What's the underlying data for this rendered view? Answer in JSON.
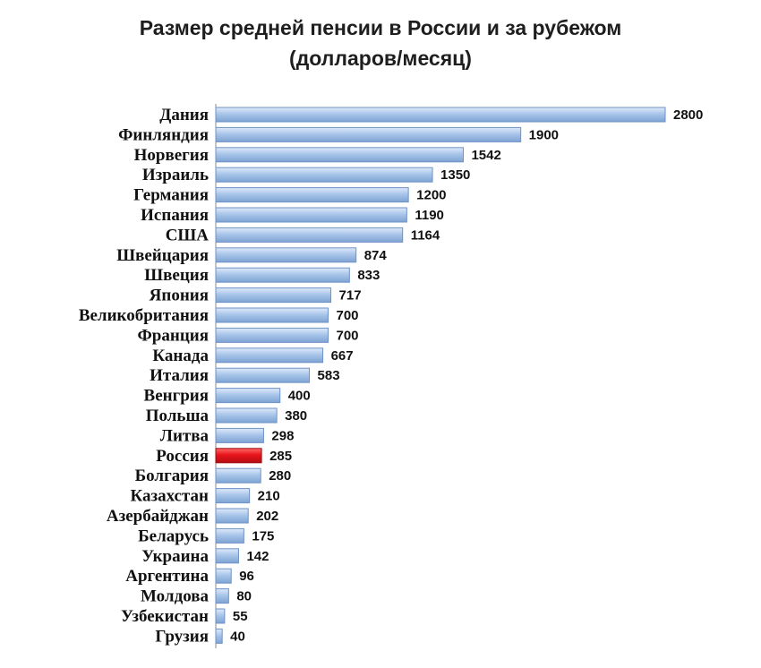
{
  "chart_data": {
    "type": "bar",
    "orientation": "horizontal",
    "title": "Размер средней пенсии в России и за рубежом",
    "subtitle": "(долларов/месяц)",
    "categories": [
      "Дания",
      "Финляндия",
      "Норвегия",
      "Израиль",
      "Германия",
      "Испания",
      "США",
      "Швейцария",
      "Швеция",
      "Япония",
      "Великобритания",
      "Франция",
      "Канада",
      "Италия",
      "Венгрия",
      "Польша",
      "Литва",
      "Россия",
      "Болгария",
      "Казахстан",
      "Азербайджан",
      "Беларусь",
      "Украина",
      "Аргентина",
      "Молдова",
      "Узбекистан",
      "Грузия"
    ],
    "values": [
      2800,
      1900,
      1542,
      1350,
      1200,
      1190,
      1164,
      874,
      833,
      717,
      700,
      700,
      667,
      583,
      400,
      380,
      298,
      285,
      280,
      210,
      202,
      175,
      142,
      96,
      80,
      55,
      40
    ],
    "data_labels": [
      "2800",
      "1900",
      "1542",
      "1350",
      "1200",
      "1190",
      "1164",
      "874",
      "833",
      "717",
      "700",
      "700",
      "667",
      "583",
      "400",
      "380",
      "298",
      "285",
      "280",
      "210",
      "202",
      "175",
      "142",
      "96",
      "80",
      "55",
      "40"
    ],
    "xlim": [
      0,
      2800
    ],
    "highlight_category": "Россия",
    "colors": {
      "bar": "#a9c6ea",
      "bar_edge": "#6f93c4",
      "highlight": "#e8141a",
      "highlight_edge": "#9e0b0f"
    },
    "grid": false,
    "legend": "none"
  }
}
